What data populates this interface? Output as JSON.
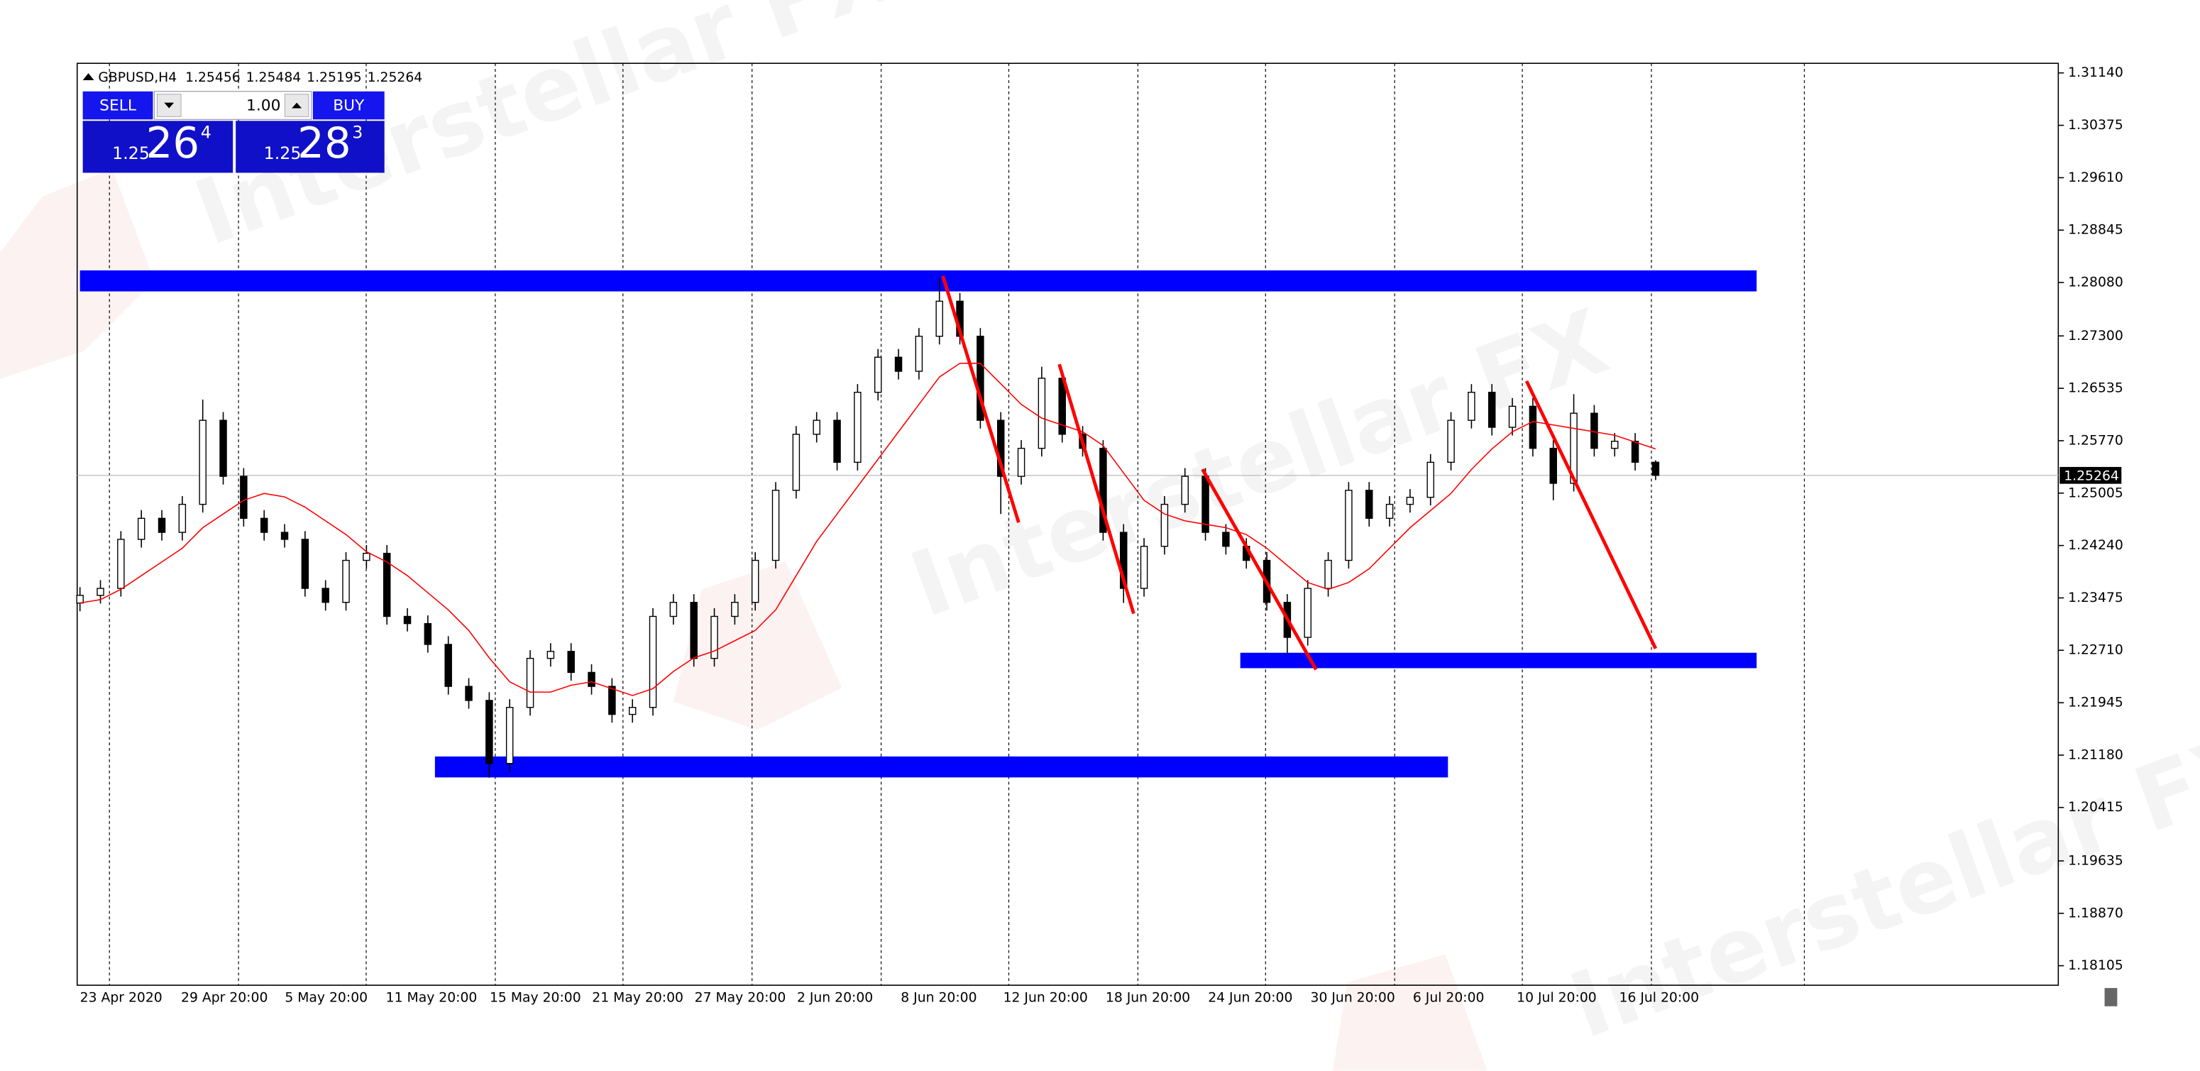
{
  "chart_data": {
    "type": "candlestick",
    "symbol": "GBPUSD,H4",
    "open": [
      1.234,
      1.23512,
      1.23614,
      1.2433,
      1.24637,
      1.24432,
      1.24841,
      1.26068,
      1.2525,
      1.24637,
      1.24432,
      1.2433,
      1.23614,
      1.2341,
      1.24023,
      1.24126,
      1.23205,
      1.231,
      1.22796,
      1.22183,
      1.21978,
      1.21058,
      1.21876,
      1.22592,
      1.22694,
      1.22387,
      1.22183,
      1.21774,
      1.21876,
      1.23205,
      1.2341,
      1.22592,
      1.23205,
      1.2341,
      1.24023,
      1.25046,
      1.25864,
      1.26068,
      1.25455,
      1.26477,
      1.26989,
      1.26784,
      1.27295,
      1.27807,
      1.27295,
      1.26068,
      1.2525,
      1.25659,
      1.26682,
      1.25864,
      1.25659,
      1.24432,
      1.23614,
      1.24228,
      1.24841,
      1.2525,
      1.24432,
      1.24228,
      1.24023,
      1.2341,
      1.22899,
      1.23614,
      1.24023,
      1.25046,
      1.24637,
      1.24841,
      1.24944,
      1.25455,
      1.26068,
      1.26477,
      1.25966,
      1.26273,
      1.25659,
      1.25148,
      1.26171,
      1.25659,
      1.25762,
      1.25456
    ],
    "high": [
      1.23632,
      1.23734,
      1.2445,
      1.24757,
      1.24757,
      1.24961,
      1.2637,
      1.26188,
      1.2537,
      1.24757,
      1.24552,
      1.2445,
      1.23734,
      1.24143,
      1.24246,
      1.24246,
      1.23325,
      1.2322,
      1.22916,
      1.22303,
      1.22098,
      1.21996,
      1.22712,
      1.22814,
      1.22814,
      1.22507,
      1.22303,
      1.21996,
      1.23325,
      1.2353,
      1.2353,
      1.23325,
      1.2353,
      1.24143,
      1.25166,
      1.25984,
      1.26188,
      1.26188,
      1.26597,
      1.27109,
      1.27109,
      1.27415,
      1.2815,
      1.27927,
      1.27415,
      1.26188,
      1.25779,
      1.2685,
      1.26802,
      1.25984,
      1.25779,
      1.24552,
      1.24348,
      1.24961,
      1.2537,
      1.2537,
      1.24552,
      1.24348,
      1.24143,
      1.2353,
      1.23734,
      1.24143,
      1.25166,
      1.25166,
      1.24961,
      1.25064,
      1.25575,
      1.26188,
      1.26597,
      1.26597,
      1.26393,
      1.26393,
      1.25779,
      1.2645,
      1.26291,
      1.25882,
      1.25882,
      1.25484
    ],
    "low": [
      1.2328,
      1.23392,
      1.23494,
      1.2421,
      1.24312,
      1.24312,
      1.24721,
      1.2513,
      1.24517,
      1.24312,
      1.2421,
      1.23494,
      1.2329,
      1.2329,
      1.23903,
      1.23085,
      1.22985,
      1.22676,
      1.22063,
      1.21858,
      1.2085,
      1.20938,
      1.21756,
      1.22472,
      1.22267,
      1.22063,
      1.21654,
      1.21654,
      1.21756,
      1.23085,
      1.22472,
      1.22472,
      1.23085,
      1.2329,
      1.23903,
      1.24926,
      1.25744,
      1.25335,
      1.25335,
      1.26357,
      1.26664,
      1.26664,
      1.27175,
      1.27175,
      1.25948,
      1.247,
      1.2513,
      1.25539,
      1.25744,
      1.25539,
      1.24312,
      1.234,
      1.23494,
      1.24108,
      1.24721,
      1.24312,
      1.24108,
      1.23903,
      1.2329,
      1.2265,
      1.22779,
      1.23494,
      1.23903,
      1.24517,
      1.24517,
      1.24721,
      1.24824,
      1.25335,
      1.25948,
      1.25846,
      1.25846,
      1.25539,
      1.249,
      1.25028,
      1.25539,
      1.25539,
      1.25335,
      1.25195
    ],
    "close": [
      1.23512,
      1.23614,
      1.2433,
      1.24637,
      1.24432,
      1.24841,
      1.26068,
      1.2525,
      1.24637,
      1.24432,
      1.2433,
      1.23614,
      1.2341,
      1.24023,
      1.24126,
      1.23205,
      1.231,
      1.22796,
      1.22183,
      1.21978,
      1.21058,
      1.21876,
      1.22592,
      1.22694,
      1.22387,
      1.22183,
      1.21774,
      1.21876,
      1.23205,
      1.2341,
      1.22592,
      1.23205,
      1.2341,
      1.24023,
      1.25046,
      1.25864,
      1.26068,
      1.25455,
      1.26477,
      1.26989,
      1.26784,
      1.27295,
      1.27807,
      1.27295,
      1.26068,
      1.2525,
      1.25659,
      1.26682,
      1.25864,
      1.25659,
      1.24432,
      1.23614,
      1.24228,
      1.24841,
      1.2525,
      1.24432,
      1.24228,
      1.24023,
      1.2341,
      1.22899,
      1.23614,
      1.24023,
      1.25046,
      1.24637,
      1.24841,
      1.24944,
      1.25455,
      1.26068,
      1.26477,
      1.25966,
      1.26273,
      1.25659,
      1.25148,
      1.26171,
      1.25659,
      1.25762,
      1.25456,
      1.25264
    ],
    "ma": {
      "color": "#ff0000",
      "values": [
        1.234,
        1.2345,
        1.236,
        1.238,
        1.24,
        1.242,
        1.245,
        1.247,
        1.249,
        1.25,
        1.2495,
        1.248,
        1.246,
        1.244,
        1.2415,
        1.24,
        1.238,
        1.2355,
        1.233,
        1.23,
        1.226,
        1.2225,
        1.221,
        1.221,
        1.222,
        1.2225,
        1.2215,
        1.2205,
        1.2215,
        1.224,
        1.226,
        1.227,
        1.2285,
        1.23,
        1.233,
        1.238,
        1.243,
        1.247,
        1.251,
        1.255,
        1.259,
        1.263,
        1.267,
        1.269,
        1.269,
        1.266,
        1.263,
        1.261,
        1.26,
        1.259,
        1.257,
        1.253,
        1.249,
        1.247,
        1.246,
        1.2455,
        1.245,
        1.244,
        1.242,
        1.2395,
        1.237,
        1.236,
        1.237,
        1.239,
        1.242,
        1.245,
        1.2475,
        1.25,
        1.2535,
        1.2565,
        1.259,
        1.2605,
        1.26,
        1.2595,
        1.259,
        1.2585,
        1.2575,
        1.2565
      ]
    },
    "ylim": [
      1.1782,
      1.3128
    ],
    "yticks": [
      {
        "value": 1.3114,
        "label": "1.31140"
      },
      1.30375,
      {
        "value": 1.2961,
        "label": "1.29610"
      },
      1.28845,
      {
        "value": 1.2808,
        "label": "1.28080"
      },
      {
        "value": 1.273,
        "label": "1.27300"
      },
      1.26535,
      {
        "value": 1.2577,
        "label": "1.25770"
      },
      1.25005,
      {
        "value": 1.2424,
        "label": "1.24240"
      },
      1.23475,
      {
        "value": 1.2271,
        "label": "1.22710"
      },
      1.21945,
      {
        "value": 1.2118,
        "label": "1.21180"
      },
      1.20415,
      1.19635,
      {
        "value": 1.1887,
        "label": "1.18870"
      },
      1.18105
    ],
    "xlabels": [
      "23 Apr 2020",
      "29 Apr 20:00",
      "5 May 20:00",
      "11 May 20:00",
      "15 May 20:00",
      "21 May 20:00",
      "27 May 20:00",
      "2 Jun 20:00",
      "8 Jun 20:00",
      "12 Jun 20:00",
      "18 Jun 20:00",
      "24 Jun 20:00",
      "30 Jun 20:00",
      "6 Jul 20:00",
      "10 Jul 20:00",
      "16 Jul 20:00"
    ],
    "zone_color": "#0000ff",
    "zones": [
      {
        "top": 1.28257,
        "bottom": 1.2795
      },
      {
        "top": 1.22674,
        "bottom": 1.22449
      },
      {
        "top": 1.2116,
        "bottom": 1.20854
      }
    ],
    "trend_color": "#ff0000",
    "trendlines": [
      {
        "from": 1.28175,
        "to": 1.24576
      },
      {
        "from": 1.26886,
        "to": 1.23246
      },
      {
        "from": 1.25353,
        "to": 1.22428
      },
      {
        "from": 1.26641,
        "to": 1.22735
      }
    ],
    "watermark": "Interstellar FX"
  },
  "trade_panel": {
    "sell": "SELL",
    "lots": "1.00",
    "buy": "BUY",
    "bid": {
      "big": "1.25",
      "pips": "26",
      "frac": "4"
    },
    "ask": {
      "big": "1.25",
      "pips": "28",
      "frac": "3"
    }
  }
}
